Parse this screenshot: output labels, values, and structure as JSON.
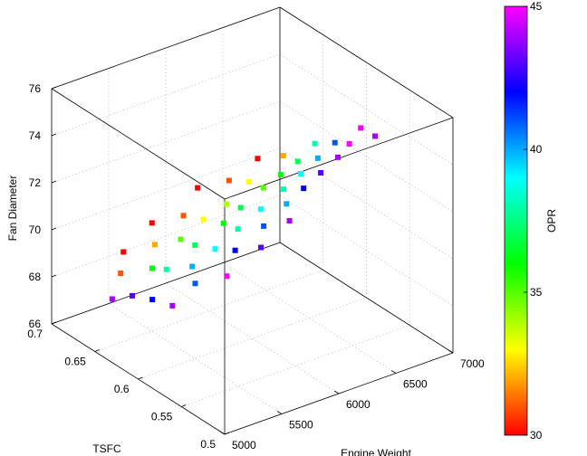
{
  "chart_data": {
    "type": "scatter3d",
    "xlabel": "Engine Weight",
    "ylabel": "TSFC",
    "zlabel": "Fan Diameter",
    "colorbar_label": "OPR",
    "xlim": [
      5000,
      7000
    ],
    "xticks": [
      5000,
      5500,
      6000,
      6500,
      7000
    ],
    "ylim": [
      0.5,
      0.7
    ],
    "yticks": [
      0.5,
      0.55,
      0.6,
      0.65,
      0.7
    ],
    "zlim": [
      66,
      76
    ],
    "zticks": [
      66,
      68,
      70,
      72,
      74,
      76
    ],
    "clim": [
      30,
      45
    ],
    "cticks": [
      30,
      35,
      40,
      45
    ],
    "colormap": "hsv",
    "grid": true,
    "x": [
      5000,
      5100,
      5150,
      5200,
      5250,
      5300,
      5350,
      5400,
      5450,
      5500,
      5500,
      5550,
      5600,
      5650,
      5700,
      5700,
      5750,
      5800,
      5850,
      5900,
      5900,
      5950,
      6000,
      6000,
      6050,
      6100,
      6100,
      6150,
      6200,
      6250,
      6250,
      6300,
      6350,
      6350,
      6400,
      6450,
      6500,
      6500,
      6550,
      6600,
      6650,
      6700,
      6750,
      6800,
      6850,
      6950,
      7000
    ],
    "y": [
      0.63,
      0.62,
      0.64,
      0.61,
      0.65,
      0.6,
      0.63,
      0.62,
      0.64,
      0.6,
      0.65,
      0.61,
      0.63,
      0.62,
      0.64,
      0.59,
      0.61,
      0.63,
      0.6,
      0.62,
      0.65,
      0.61,
      0.63,
      0.59,
      0.62,
      0.64,
      0.6,
      0.61,
      0.63,
      0.62,
      0.59,
      0.6,
      0.64,
      0.61,
      0.62,
      0.6,
      0.63,
      0.61,
      0.62,
      0.6,
      0.61,
      0.62,
      0.6,
      0.61,
      0.6,
      0.6,
      0.59
    ],
    "z": [
      68.7,
      68.9,
      69.3,
      68.8,
      69.8,
      68.6,
      69.4,
      69.5,
      70.0,
      69.2,
      70.6,
      69.6,
      70.2,
      70.1,
      70.8,
      69.4,
      70.0,
      70.7,
      70.0,
      70.6,
      71.4,
      70.5,
      71.0,
      70.1,
      71.0,
      71.6,
      70.6,
      71.0,
      71.6,
      71.5,
      70.8,
      71.2,
      72.1,
      71.5,
      71.8,
      71.6,
      72.2,
      71.9,
      72.1,
      72.0,
      72.3,
      72.6,
      72.4,
      72.7,
      72.8,
      73.3,
      73.1
    ],
    "color_values": [
      44,
      43,
      31,
      42,
      30,
      44,
      36,
      38,
      32,
      41,
      30,
      40,
      35,
      37,
      31,
      45,
      39,
      33,
      42,
      36,
      30,
      38,
      34,
      43,
      37,
      31,
      41,
      39,
      33,
      35,
      44,
      40,
      30,
      38,
      36,
      42,
      32,
      39,
      37,
      43,
      40,
      38,
      44,
      41,
      45,
      45,
      44
    ]
  }
}
